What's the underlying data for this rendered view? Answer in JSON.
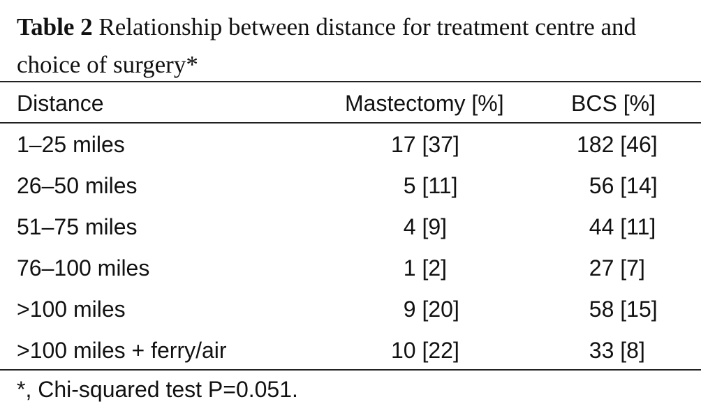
{
  "caption": {
    "label": "Table 2",
    "text": " Relationship between distance for treatment centre and choice of surgery*"
  },
  "table": {
    "headers": [
      "Distance",
      "Mastectomy [%]",
      "BCS [%]"
    ],
    "rows": [
      [
        "1–25 miles",
        "17 [37]",
        "182 [46]"
      ],
      [
        "26–50 miles",
        "  5 [11]",
        "  56 [14]"
      ],
      [
        "51–75 miles",
        "  4 [9]",
        "  44 [11]"
      ],
      [
        "76–100 miles",
        "  1 [2]",
        "  27 [7]"
      ],
      [
        ">100 miles",
        "  9 [20]",
        "  58 [15]"
      ],
      [
        ">100 miles + ferry/air",
        "10 [22]",
        "  33 [8]"
      ]
    ]
  },
  "footnote": "*, Chi-squared test P=0.051."
}
